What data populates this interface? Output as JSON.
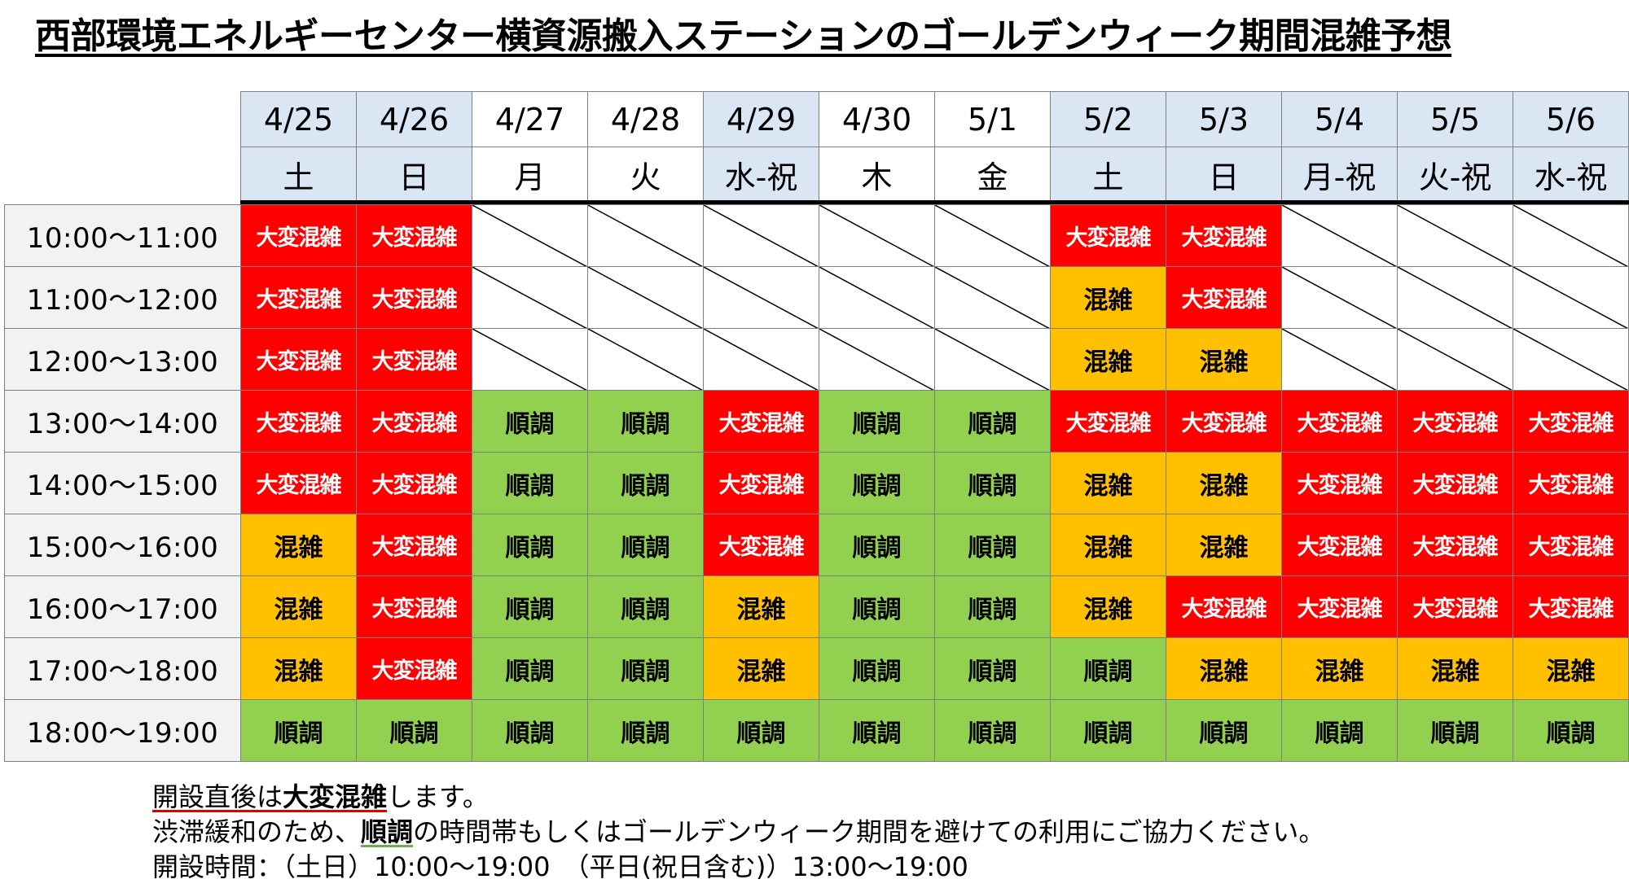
{
  "title": "西部環境エネルギーセンター横資源搬入ステーションのゴールデンウィーク期間混雑予想",
  "status_labels": {
    "red": "大変混雑",
    "yellow": "混雑",
    "green": "順調",
    "closed": ""
  },
  "colors": {
    "red": "#ff0000",
    "yellow": "#ffc000",
    "green": "#92d050",
    "header_blue": "#dbe6f4",
    "time_bg": "#f2f2f2"
  },
  "days": [
    {
      "date": "4/25",
      "weekday": "土",
      "shade": "blue"
    },
    {
      "date": "4/26",
      "weekday": "日",
      "shade": "blue"
    },
    {
      "date": "4/27",
      "weekday": "月",
      "shade": "white"
    },
    {
      "date": "4/28",
      "weekday": "火",
      "shade": "white"
    },
    {
      "date": "4/29",
      "weekday": "水-祝",
      "shade": "blue"
    },
    {
      "date": "4/30",
      "weekday": "木",
      "shade": "white"
    },
    {
      "date": "5/1",
      "weekday": "金",
      "shade": "white"
    },
    {
      "date": "5/2",
      "weekday": "土",
      "shade": "blue"
    },
    {
      "date": "5/3",
      "weekday": "日",
      "shade": "blue"
    },
    {
      "date": "5/4",
      "weekday": "月-祝",
      "shade": "blue"
    },
    {
      "date": "5/5",
      "weekday": "火-祝",
      "shade": "blue"
    },
    {
      "date": "5/6",
      "weekday": "水-祝",
      "shade": "blue"
    }
  ],
  "time_slots": [
    "10:00～11:00",
    "11:00～12:00",
    "12:00～13:00",
    "13:00～14:00",
    "14:00～15:00",
    "15:00～16:00",
    "16:00～17:00",
    "17:00～18:00",
    "18:00～19:00"
  ],
  "grid": [
    [
      "red",
      "red",
      "closed",
      "closed",
      "closed",
      "closed",
      "closed",
      "red",
      "red",
      "closed",
      "closed",
      "closed"
    ],
    [
      "red",
      "red",
      "closed",
      "closed",
      "closed",
      "closed",
      "closed",
      "yellow",
      "red",
      "closed",
      "closed",
      "closed"
    ],
    [
      "red",
      "red",
      "closed",
      "closed",
      "closed",
      "closed",
      "closed",
      "yellow",
      "yellow",
      "closed",
      "closed",
      "closed"
    ],
    [
      "red",
      "red",
      "green",
      "green",
      "red",
      "green",
      "green",
      "red",
      "red",
      "red",
      "red",
      "red"
    ],
    [
      "red",
      "red",
      "green",
      "green",
      "red",
      "green",
      "green",
      "yellow",
      "yellow",
      "red",
      "red",
      "red"
    ],
    [
      "yellow",
      "red",
      "green",
      "green",
      "red",
      "green",
      "green",
      "yellow",
      "yellow",
      "red",
      "red",
      "red"
    ],
    [
      "yellow",
      "red",
      "green",
      "green",
      "yellow",
      "green",
      "green",
      "yellow",
      "red",
      "red",
      "red",
      "red"
    ],
    [
      "yellow",
      "red",
      "green",
      "green",
      "yellow",
      "green",
      "green",
      "green",
      "yellow",
      "yellow",
      "yellow",
      "yellow"
    ],
    [
      "green",
      "green",
      "green",
      "green",
      "green",
      "green",
      "green",
      "green",
      "green",
      "green",
      "green",
      "green"
    ]
  ],
  "notes": {
    "line1_pre": "開設直後は",
    "line1_em": "大変混雑",
    "line1_post": "します。",
    "line2_pre": "渋滞緩和のため、",
    "line2_em": "順調",
    "line2_post": "の時間帯もしくはゴールデンウィーク期間を避けての利用にご協力ください。",
    "line3": "開設時間：（土日）10:00～19:00　（平日(祝日含む)）13:00～19:00"
  }
}
